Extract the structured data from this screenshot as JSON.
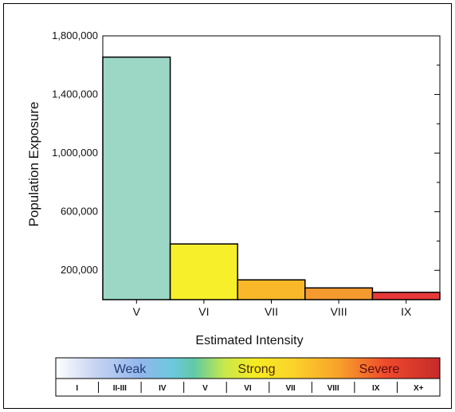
{
  "chart_data": {
    "type": "bar",
    "ylabel": "Population Exposure",
    "xlabel": "Estimated Intensity",
    "categories": [
      "V",
      "VI",
      "VII",
      "VIII",
      "IX"
    ],
    "values": [
      1655000,
      380000,
      135000,
      80000,
      50000
    ],
    "bar_colors": [
      "#9cd7c6",
      "#f7ef2a",
      "#f9b82a",
      "#f59a2e",
      "#e8393a"
    ],
    "ylim": [
      0,
      1800000
    ],
    "yticks_major": [
      {
        "value": 200000,
        "label": "200,000"
      },
      {
        "value": 600000,
        "label": "600,000"
      },
      {
        "value": 1000000,
        "label": "1,000,000"
      },
      {
        "value": 1400000,
        "label": "1,400,000"
      },
      {
        "value": 1800000,
        "label": "1,800,000"
      }
    ],
    "yticks_minor": [
      400000,
      800000,
      1200000,
      1600000
    ],
    "grid": false
  },
  "intensity_scale": {
    "categories": [
      {
        "label": "Weak",
        "color": "#203a70"
      },
      {
        "label": "Strong",
        "color": "#4a2a00"
      },
      {
        "label": "Severe",
        "color": "#5a0b10"
      }
    ],
    "cells": [
      "I",
      "II-III",
      "IV",
      "V",
      "VI",
      "VII",
      "VIII",
      "IX",
      "X+"
    ]
  }
}
